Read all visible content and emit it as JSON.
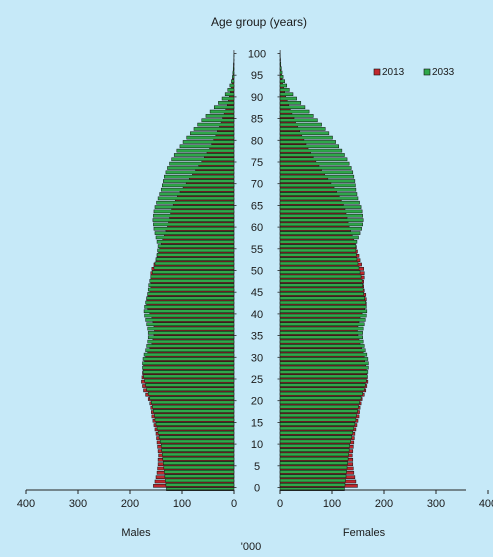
{
  "chart_data": {
    "type": "bar",
    "orientation": "horizontal-population-pyramid",
    "title": "Age group (years)",
    "unit_label": "'000",
    "sides": [
      "Males",
      "Females"
    ],
    "age_ticks": [
      0,
      5,
      10,
      15,
      20,
      25,
      30,
      35,
      40,
      45,
      50,
      55,
      60,
      65,
      70,
      75,
      80,
      85,
      90,
      95,
      100
    ],
    "value_ticks": [
      400,
      300,
      200,
      100,
      0,
      0,
      100,
      200,
      300,
      400
    ],
    "xlim": [
      0,
      400
    ],
    "ylim": [
      0,
      100
    ],
    "legend_position": "top-right",
    "series": [
      {
        "name": "2013",
        "color": "#c0282e",
        "males": [
          155,
          152,
          150,
          148,
          147,
          146,
          146,
          145,
          146,
          147,
          148,
          149,
          150,
          152,
          154,
          156,
          158,
          159,
          160,
          162,
          165,
          170,
          174,
          176,
          178,
          177,
          176,
          175,
          174,
          172,
          170,
          166,
          162,
          158,
          156,
          154,
          153,
          154,
          156,
          158,
          162,
          166,
          168,
          168,
          166,
          162,
          160,
          160,
          160,
          160,
          158,
          154,
          150,
          148,
          145,
          143,
          140,
          137,
          134,
          131,
          128,
          126,
          124,
          122,
          120,
          117,
          113,
          109,
          104,
          98,
          92,
          86,
          80,
          74,
          68,
          62,
          57,
          52,
          47,
          43,
          39,
          35,
          32,
          28,
          25,
          22,
          19,
          16,
          13,
          11,
          9,
          7,
          5,
          4,
          3,
          2,
          1.5,
          1,
          0.5,
          0.3,
          0.2
        ],
        "females": [
          149,
          146,
          144,
          142,
          141,
          140,
          140,
          139,
          140,
          141,
          142,
          143,
          144,
          146,
          148,
          150,
          152,
          153,
          154,
          156,
          158,
          162,
          165,
          167,
          169,
          168,
          167,
          166,
          165,
          163,
          162,
          160,
          157,
          154,
          152,
          150,
          149,
          150,
          152,
          154,
          158,
          163,
          166,
          166,
          165,
          162,
          161,
          161,
          162,
          162,
          161,
          157,
          154,
          152,
          149,
          147,
          145,
          142,
          139,
          136,
          133,
          131,
          129,
          127,
          125,
          122,
          118,
          114,
          109,
          104,
          98,
          92,
          86,
          80,
          75,
          69,
          64,
          59,
          54,
          50,
          46,
          42,
          38,
          34,
          30,
          27,
          23,
          20,
          17,
          14,
          11,
          9,
          7,
          5,
          4,
          3,
          2,
          1.2,
          0.8,
          0.5,
          0.3
        ]
      },
      {
        "name": "2033",
        "color": "#2fa84a",
        "males": [
          130,
          131,
          132,
          133,
          134,
          135,
          136,
          137,
          138,
          139,
          140,
          142,
          144,
          146,
          148,
          150,
          152,
          153,
          155,
          157,
          159,
          162,
          165,
          168,
          170,
          172,
          174,
          175,
          176,
          176,
          175,
          173,
          170,
          168,
          166,
          165,
          165,
          166,
          168,
          170,
          172,
          173,
          172,
          170,
          168,
          166,
          165,
          164,
          162,
          160,
          157,
          154,
          152,
          150,
          148,
          147,
          146,
          148,
          150,
          152,
          154,
          155,
          156,
          155,
          154,
          152,
          149,
          146,
          143,
          140,
          138,
          136,
          134,
          131,
          128,
          124,
          120,
          115,
          110,
          104,
          98,
          91,
          84,
          77,
          70,
          62,
          54,
          46,
          38,
          30,
          23,
          17,
          12,
          8,
          5,
          3,
          2,
          1.2,
          0.7,
          0.4,
          0.2
        ],
        "females": [
          124,
          125,
          126,
          127,
          128,
          129,
          130,
          131,
          132,
          133,
          134,
          136,
          138,
          140,
          142,
          144,
          146,
          147,
          149,
          151,
          153,
          156,
          159,
          162,
          164,
          166,
          168,
          169,
          170,
          170,
          169,
          167,
          164,
          162,
          160,
          159,
          159,
          160,
          162,
          164,
          166,
          167,
          166,
          165,
          163,
          161,
          160,
          159,
          158,
          156,
          154,
          152,
          150,
          148,
          147,
          146,
          146,
          148,
          151,
          154,
          157,
          159,
          160,
          159,
          158,
          156,
          153,
          150,
          148,
          146,
          145,
          144,
          142,
          140,
          137,
          133,
          129,
          124,
          119,
          113,
          107,
          101,
          94,
          87,
          80,
          72,
          64,
          56,
          48,
          40,
          32,
          25,
          18,
          13,
          9,
          6,
          4,
          2.5,
          1.5,
          0.8,
          0.4
        ]
      }
    ]
  }
}
